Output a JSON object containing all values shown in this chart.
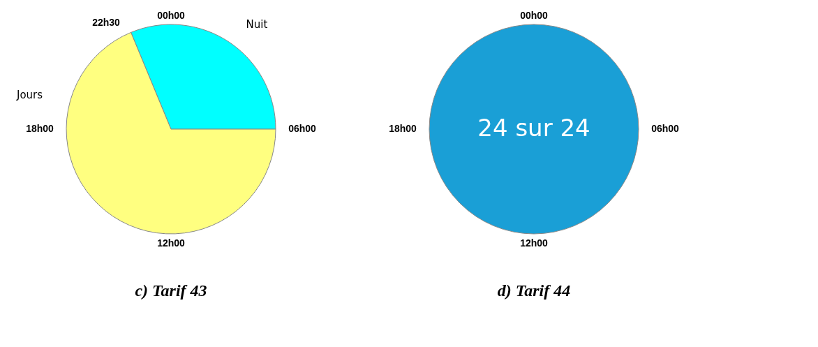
{
  "chart_data": [
    {
      "type": "pie",
      "title": "c)        Tarif 43",
      "categories": [
        "Nuit",
        "Jours"
      ],
      "values": [
        31.25,
        68.75
      ],
      "colors": [
        "#00ffff",
        "#ffff80"
      ],
      "annotations": [
        "00h00",
        "06h00",
        "12h00",
        "18h00",
        "22h30"
      ]
    },
    {
      "type": "pie",
      "title": "d)        Tarif 44",
      "categories": [
        "24 sur 24"
      ],
      "values": [
        100
      ],
      "colors": [
        "#1a9fd6"
      ],
      "annotations": [
        "00h00",
        "06h00",
        "12h00",
        "18h00"
      ]
    }
  ]
}
